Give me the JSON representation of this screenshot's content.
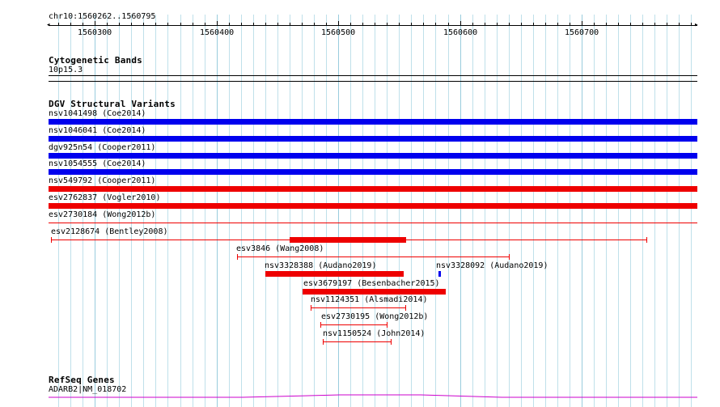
{
  "ruler": {
    "region_label": "chr10:1560262..1560795",
    "start": 1560262,
    "end": 1560795,
    "tick_labels": [
      "1560300",
      "1560400",
      "1560500",
      "1560600",
      "1560700"
    ]
  },
  "cytoband": {
    "title": "Cytogenetic Bands",
    "band_label": "10p15.3"
  },
  "dgv": {
    "title": "DGV Structural Variants",
    "features": [
      {
        "label": "nsv1041498 (Coe2014)",
        "start": 1560262,
        "end": 1560795,
        "color": "#0000ee",
        "style": "thick"
      },
      {
        "label": "nsv1046041 (Coe2014)",
        "start": 1560262,
        "end": 1560795,
        "color": "#0000ee",
        "style": "thick"
      },
      {
        "label": "dgv925n54 (Cooper2011)",
        "start": 1560262,
        "end": 1560795,
        "color": "#0000ee",
        "style": "thick"
      },
      {
        "label": "nsv1054555 (Coe2014)",
        "start": 1560262,
        "end": 1560795,
        "color": "#0000ee",
        "style": "thick"
      },
      {
        "label": "nsv549792 (Cooper2011)",
        "start": 1560262,
        "end": 1560795,
        "color": "#ee0000",
        "style": "thick"
      },
      {
        "label": "esv2762837 (Vogler2010)",
        "start": 1560262,
        "end": 1560795,
        "color": "#ee0000",
        "style": "thick"
      },
      {
        "label": "esv2730184 (Wong2012b)",
        "start": 1560262,
        "end": 1560795,
        "color": "#ee0000",
        "style": "line"
      },
      {
        "label": "esv2128674 (Bentley2008)",
        "start": 1560264,
        "end": 1560753,
        "thick_start": 1560460,
        "thick_end": 1560556,
        "color": "#ee0000",
        "style": "bracket"
      },
      {
        "label": "esv3846 (Wang2008)",
        "start": 1560417,
        "end": 1560640,
        "color": "#ee0000",
        "style": "bracket"
      },
      {
        "label": "nsv3328388 (Audano2019)",
        "start": 1560440,
        "end": 1560554,
        "color": "#ee0000",
        "style": "thick"
      },
      {
        "label": "nsv3328092 (Audano2019)",
        "start": 1560582,
        "end": 1560584,
        "color": "#0000ee",
        "style": "thick"
      },
      {
        "label": "esv3679197 (Besenbacher2015)",
        "start": 1560471,
        "end": 1560588,
        "color": "#ee0000",
        "style": "thick"
      },
      {
        "label": "nsv1124351 (Alsmadi2014)",
        "start": 1560477,
        "end": 1560555,
        "color": "#ee0000",
        "style": "bracket"
      },
      {
        "label": "esv2730195 (Wong2012b)",
        "start": 1560485,
        "end": 1560540,
        "color": "#ee0000",
        "style": "bracket"
      },
      {
        "label": "nsv1150524 (John2014)",
        "start": 1560487,
        "end": 1560543,
        "color": "#ee0000",
        "style": "bracket"
      }
    ]
  },
  "refseq": {
    "title": "RefSeq Genes",
    "gene_label": "ADARB2|NM_018702",
    "color": "#cc00cc"
  },
  "colors": {
    "grid_major": "#99ccdd",
    "grid_minor": "#bfe0ea",
    "loss_red": "#ee0000",
    "gain_blue": "#0000ee",
    "gene_magenta": "#cc00cc"
  }
}
